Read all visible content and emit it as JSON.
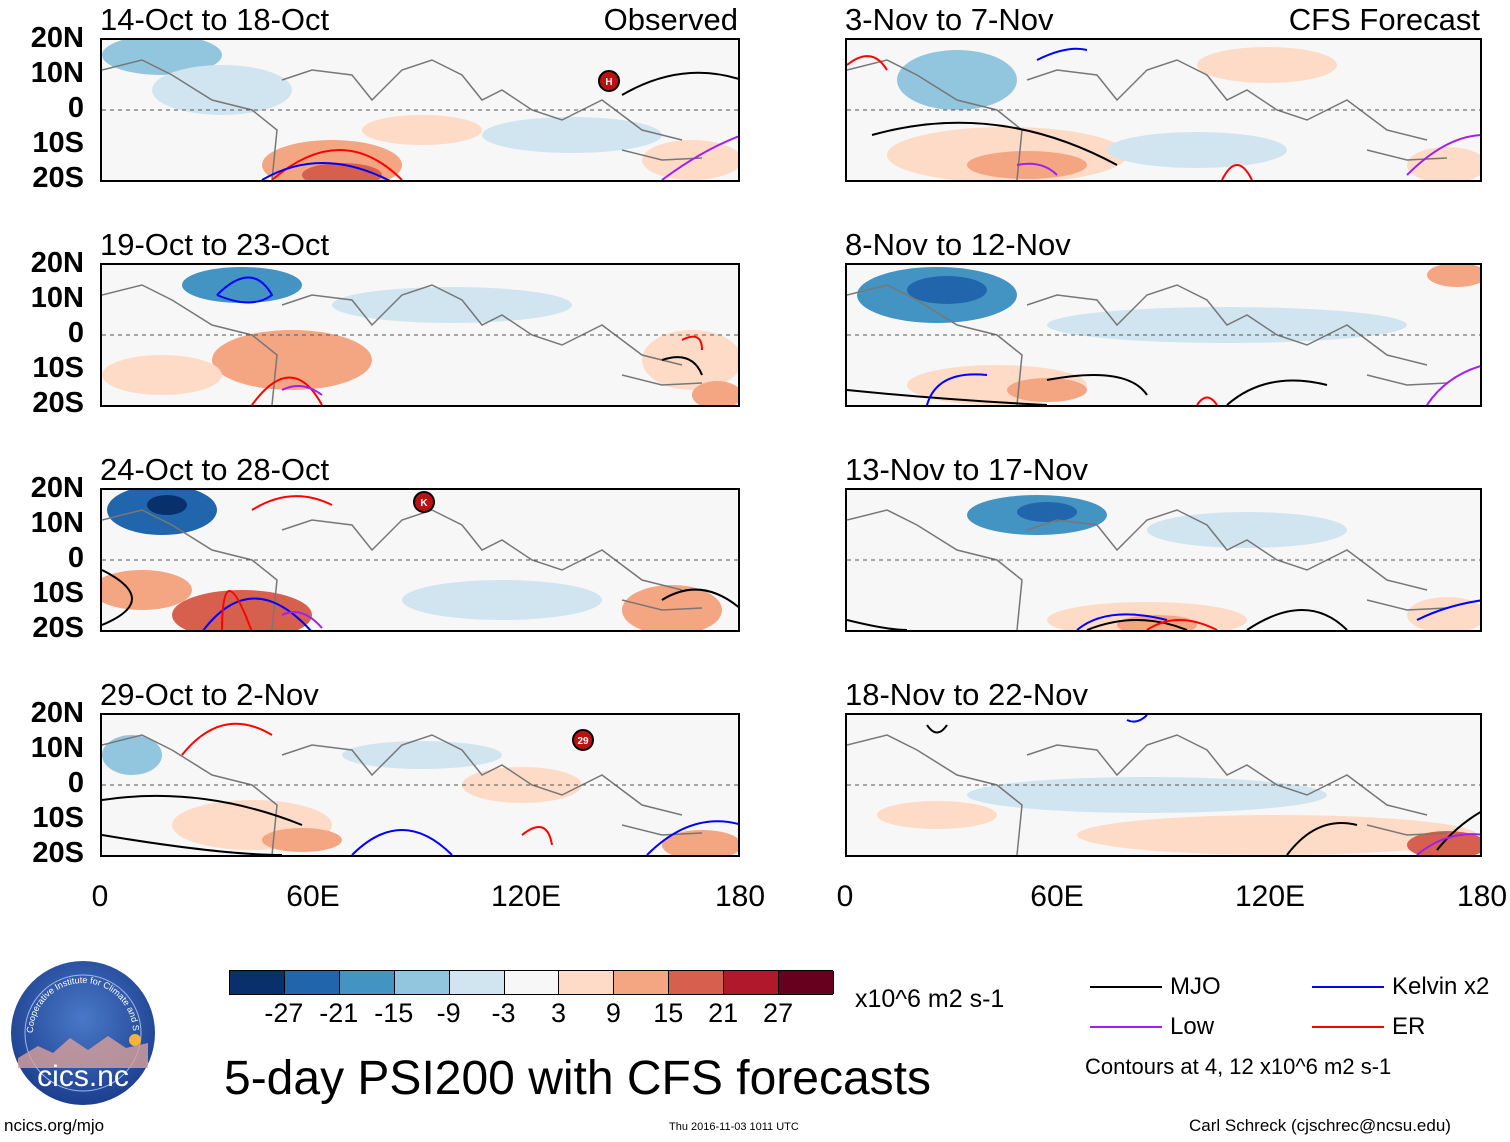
{
  "panels_left": [
    {
      "title": "14-Oct to 18-Oct",
      "tag": "Observed"
    },
    {
      "title": "19-Oct to 23-Oct",
      "tag": ""
    },
    {
      "title": "24-Oct to 28-Oct",
      "tag": ""
    },
    {
      "title": "29-Oct to 2-Nov",
      "tag": ""
    }
  ],
  "panels_right": [
    {
      "title": "3-Nov to 7-Nov",
      "tag": "CFS Forecast"
    },
    {
      "title": "8-Nov to 12-Nov",
      "tag": ""
    },
    {
      "title": "13-Nov to 17-Nov",
      "tag": ""
    },
    {
      "title": "18-Nov to 22-Nov",
      "tag": ""
    }
  ],
  "lat_labels": [
    "20N",
    "10N",
    "0",
    "10S",
    "20S"
  ],
  "lon_labels_left": [
    "0",
    "60E",
    "120E",
    "180"
  ],
  "lon_labels_right": [
    "0",
    "60E",
    "120E",
    "180"
  ],
  "storms": [
    {
      "label": "H",
      "panel": "left-0"
    },
    {
      "label": "K",
      "panel": "left-2"
    },
    {
      "label": "29",
      "panel": "left-3"
    }
  ],
  "colorbar": {
    "colors": [
      "#08306b",
      "#2166ac",
      "#4393c3",
      "#92c5de",
      "#d1e5f0",
      "#f7f7f7",
      "#fddbc7",
      "#f4a582",
      "#d6604d",
      "#b2182b",
      "#67001f"
    ],
    "ticks": [
      "-27",
      "-21",
      "-15",
      "-9",
      "-3",
      "3",
      "9",
      "15",
      "21",
      "27"
    ],
    "units": "x10^6 m2 s-1"
  },
  "legend": {
    "items": [
      {
        "label": "MJO",
        "color": "#000000"
      },
      {
        "label": "Kelvin x2",
        "color": "#0000ff"
      },
      {
        "label": "Low",
        "color": "#a020f0"
      },
      {
        "label": "ER",
        "color": "#ff0000"
      }
    ],
    "contours_note": "Contours at 4, 12 x10^6 m2 s-1"
  },
  "main_title": "5-day PSI200 with CFS forecasts",
  "logo_text": "cics.nc",
  "logo_ring_text": "Cooperative Institute for Climate and Satellites",
  "footer": {
    "url": "ncics.org/mjo",
    "timestamp": "Thu 2016-11-03 1011 UTC",
    "credit": "Carl Schreck (cjschrec@ncsu.edu)"
  }
}
